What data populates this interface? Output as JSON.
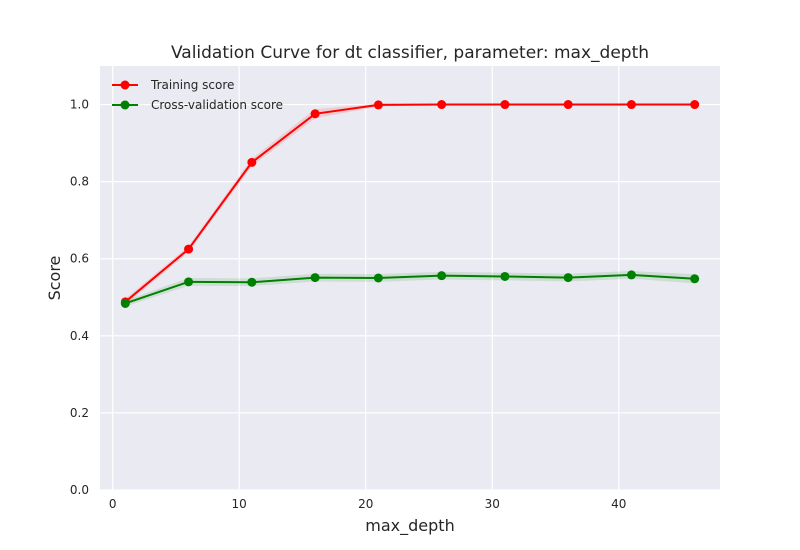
{
  "chart_data": {
    "type": "line",
    "title": "Validation Curve for dt classifier, parameter: max_depth",
    "xlabel": "max_depth",
    "ylabel": "Score",
    "xlim": [
      -1,
      48
    ],
    "ylim": [
      0.0,
      1.1
    ],
    "xticks": [
      0,
      10,
      20,
      30,
      40
    ],
    "yticks": [
      0.0,
      0.2,
      0.4,
      0.6,
      0.8,
      1.0
    ],
    "xtick_labels": [
      "0",
      "10",
      "20",
      "30",
      "40"
    ],
    "ytick_labels": [
      "0.0",
      "0.2",
      "0.4",
      "0.6",
      "0.8",
      "1.0"
    ],
    "grid": true,
    "legend_position": "top-left",
    "x": [
      1,
      6,
      11,
      16,
      21,
      26,
      31,
      36,
      41,
      46
    ],
    "series": [
      {
        "name": "Training score",
        "color": "#ff0000",
        "values": [
          0.488,
          0.625,
          0.85,
          0.976,
          0.999,
          1.0,
          1.0,
          1.0,
          1.0,
          1.0
        ],
        "band": [
          0.008,
          0.008,
          0.01,
          0.012,
          0.004,
          0.002,
          0.002,
          0.002,
          0.002,
          0.002
        ]
      },
      {
        "name": "Cross-validation score",
        "color": "#008000",
        "values": [
          0.484,
          0.54,
          0.539,
          0.551,
          0.55,
          0.556,
          0.554,
          0.551,
          0.558,
          0.548
        ],
        "band": [
          0.008,
          0.01,
          0.01,
          0.01,
          0.01,
          0.01,
          0.01,
          0.01,
          0.01,
          0.012
        ]
      }
    ]
  }
}
